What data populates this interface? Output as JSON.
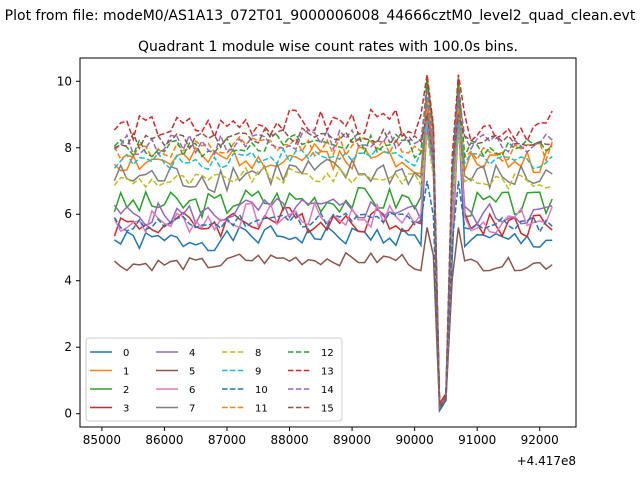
{
  "figure": {
    "suptitle": "Plot from file: modeM0/AS1A13_072T01_9000006008_44666cztM0_level2_quad_clean.evt"
  },
  "chart_data": {
    "type": "line",
    "title": "Quadrant 1 module wise count rates with 100.0s bins.",
    "xlabel": "",
    "ylabel": "",
    "x_offset_label": "+4.417e8",
    "xlim": [
      84650,
      92580
    ],
    "ylim": [
      -0.4,
      10.7
    ],
    "xticks": [
      85000,
      86000,
      87000,
      88000,
      89000,
      90000,
      91000,
      92000
    ],
    "xtick_labels": [
      "85000",
      "86000",
      "87000",
      "88000",
      "89000",
      "90000",
      "91000",
      "92000"
    ],
    "yticks": [
      0,
      2,
      4,
      6,
      8,
      10
    ],
    "ytick_labels": [
      "0",
      "2",
      "4",
      "6",
      "8",
      "10"
    ],
    "grid": false,
    "legend": {
      "placement": "lower-left",
      "columns": 4
    },
    "x": {
      "start": 85200,
      "step": 100,
      "count": 71,
      "gap_start": 90200,
      "gap_end": 90400,
      "dip_time": 90400,
      "peak_time": 90700,
      "end_time": 92300
    },
    "series": [
      {
        "name": "0",
        "color": "#1f77b4",
        "dash": "solid",
        "base": 5.2,
        "amp": 0.3,
        "peak": 9.0,
        "end": 0.6,
        "dip": 0.1
      },
      {
        "name": "1",
        "color": "#ff7f0e",
        "dash": "solid",
        "base": 7.6,
        "amp": 0.4,
        "peak": 9.5,
        "end": 0.8,
        "dip": 0.2
      },
      {
        "name": "2",
        "color": "#2ca02c",
        "dash": "solid",
        "base": 6.3,
        "amp": 0.4,
        "peak": 10.0,
        "end": 0.6,
        "dip": 0.2
      },
      {
        "name": "3",
        "color": "#d62728",
        "dash": "solid",
        "base": 5.7,
        "amp": 0.4,
        "peak": 9.2,
        "end": 0.9,
        "dip": 0.3
      },
      {
        "name": "4",
        "color": "#9467bd",
        "dash": "solid",
        "base": 6.0,
        "amp": 0.35,
        "peak": 8.6,
        "end": 0.7,
        "dip": 0.2
      },
      {
        "name": "5",
        "color": "#8c564b",
        "dash": "solid",
        "base": 4.5,
        "amp": 0.2,
        "peak": 5.6,
        "end": 0.5,
        "dip": 0.1
      },
      {
        "name": "6",
        "color": "#e377c2",
        "dash": "solid",
        "base": 5.8,
        "amp": 0.4,
        "peak": 8.9,
        "end": 0.7,
        "dip": 0.2
      },
      {
        "name": "7",
        "color": "#7f7f7f",
        "dash": "solid",
        "base": 7.1,
        "amp": 0.45,
        "peak": 9.3,
        "end": 0.8,
        "dip": 0.2
      },
      {
        "name": "8",
        "color": "#bcbd22",
        "dash": "dashed",
        "base": 7.0,
        "amp": 0.25,
        "peak": 8.4,
        "end": 0.8,
        "dip": 0.2
      },
      {
        "name": "9",
        "color": "#17becf",
        "dash": "dashed",
        "base": 7.6,
        "amp": 0.25,
        "peak": 8.8,
        "end": 0.9,
        "dip": 0.2
      },
      {
        "name": "10",
        "color": "#1f77b4",
        "dash": "dashed",
        "base": 5.7,
        "amp": 0.25,
        "peak": 7.0,
        "end": 0.6,
        "dip": 0.1
      },
      {
        "name": "11",
        "color": "#ff7f0e",
        "dash": "dashed",
        "base": 7.9,
        "amp": 0.3,
        "peak": 9.2,
        "end": 0.9,
        "dip": 0.2
      },
      {
        "name": "12",
        "color": "#2ca02c",
        "dash": "dashed",
        "base": 8.0,
        "amp": 0.3,
        "peak": 10.1,
        "end": 0.9,
        "dip": 0.2
      },
      {
        "name": "13",
        "color": "#d62728",
        "dash": "dashed",
        "base": 8.6,
        "amp": 0.4,
        "peak": 10.2,
        "end": 1.0,
        "dip": 0.3
      },
      {
        "name": "14",
        "color": "#9467bd",
        "dash": "dashed",
        "base": 8.1,
        "amp": 0.3,
        "peak": 9.7,
        "end": 0.9,
        "dip": 0.2
      },
      {
        "name": "15",
        "color": "#8c564b",
        "dash": "dashed",
        "base": 8.2,
        "amp": 0.25,
        "peak": 9.0,
        "end": 0.8,
        "dip": 0.2
      }
    ]
  }
}
